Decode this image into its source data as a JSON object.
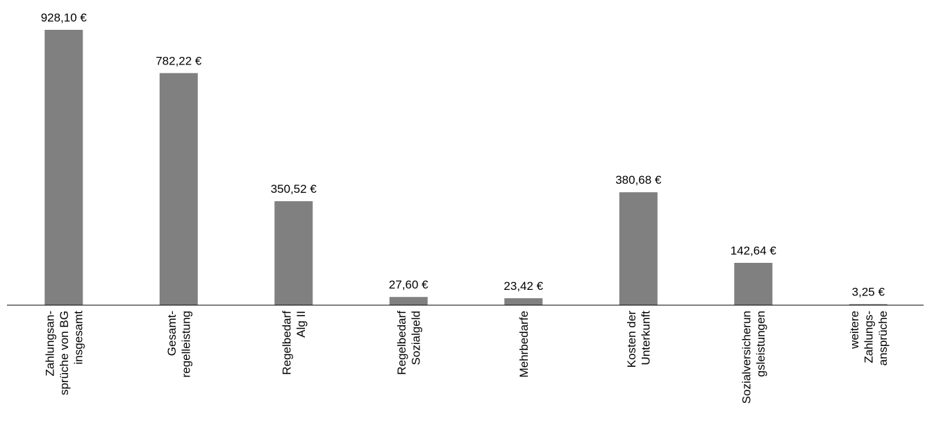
{
  "chart_data": {
    "type": "bar",
    "categories": [
      [
        "Zahlungsan-",
        "sprüche von BG",
        "insgesamt"
      ],
      [
        "Gesamt-",
        "regelleistung"
      ],
      [
        "Regelbedarf",
        "Alg II"
      ],
      [
        "Regelbedarf",
        "Sozialgeld"
      ],
      [
        "Mehrbedarfe"
      ],
      [
        "Kosten der",
        "Unterkunft"
      ],
      [
        "Sozialversicherun",
        "gsleistungen"
      ],
      [
        "weitere",
        "Zahlungs-",
        "ansprüche"
      ]
    ],
    "values": [
      928.1,
      782.22,
      350.52,
      27.6,
      23.42,
      380.68,
      142.64,
      3.25
    ],
    "data_labels": [
      "928,10 €",
      "782,22 €",
      "350,52 €",
      "27,60 €",
      "23,42 €",
      "380,68 €",
      "142,64 €",
      "3,25 €"
    ],
    "bar_color": "#808080",
    "axis_color": "#000000",
    "grid": false,
    "legend": "none"
  }
}
